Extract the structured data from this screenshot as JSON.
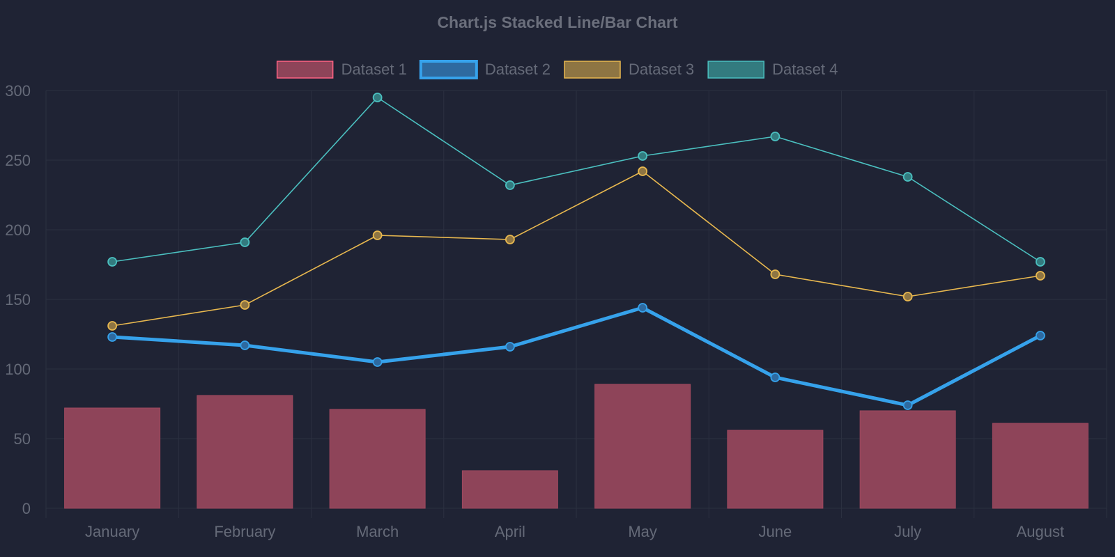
{
  "colors": {
    "background": "#1f2334",
    "grid": "#2b3040",
    "text": "#656a78",
    "title": "#6b6f7c"
  },
  "chart_data": {
    "type": "bar",
    "stacked": true,
    "title": "Chart.js Stacked Line/Bar Chart",
    "categories": [
      "January",
      "February",
      "March",
      "April",
      "May",
      "June",
      "July",
      "August"
    ],
    "ylim": [
      0,
      300
    ],
    "yticks": [
      "0",
      "50",
      "100",
      "150",
      "200",
      "250",
      "300"
    ],
    "grid": true,
    "legend_position": "top",
    "series": [
      {
        "name": "Dataset 1",
        "type": "bar",
        "values": [
          72,
          81,
          71,
          27,
          89,
          56,
          70,
          61
        ],
        "color": "#ff6384",
        "fill": "#8e4459",
        "stroke": "#a0495f"
      },
      {
        "name": "Dataset 2",
        "type": "line",
        "values": [
          51,
          36,
          34,
          89,
          55,
          38,
          4,
          63
        ],
        "color": "#36a2eb",
        "fill": "#2e6aa0",
        "thick": true
      },
      {
        "name": "Dataset 3",
        "type": "line",
        "values": [
          8,
          29,
          91,
          77,
          98,
          74,
          78,
          43
        ],
        "color": "#e8b84f",
        "fill": "#8e7543"
      },
      {
        "name": "Dataset 4",
        "type": "line",
        "values": [
          46,
          45,
          99,
          39,
          11,
          99,
          86,
          10
        ],
        "color": "#4bc0c0",
        "fill": "#337b7f"
      }
    ]
  }
}
